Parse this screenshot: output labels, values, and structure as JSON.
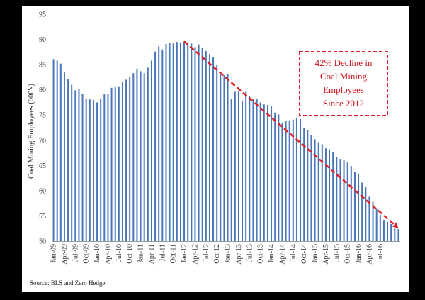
{
  "chart_data": {
    "type": "bar",
    "title": "",
    "xlabel": "",
    "ylabel": "Coal Mining Employees (000's)",
    "ylim": [
      50,
      95
    ],
    "yticks": [
      50,
      55,
      60,
      65,
      70,
      75,
      80,
      85,
      90,
      95
    ],
    "grid": false,
    "tick_labels": [
      "Jan-09",
      "Apr-09",
      "Jul-09",
      "Oct-09",
      "Jan-10",
      "Apr-10",
      "Jul-10",
      "Oct-10",
      "Jan-11",
      "Apr-11",
      "Jul-11",
      "Oct-11",
      "Jan-12",
      "Apr-12",
      "Jul-12",
      "Oct-12",
      "Jan-13",
      "Apr-13",
      "Jul-13",
      "Oct-13",
      "Jan-14",
      "Apr-14",
      "Jul-14",
      "Oct-14",
      "Jan-15",
      "Apr-15",
      "Jul-15",
      "Oct-15",
      "Jan-16",
      "Apr-16",
      "Jul-16"
    ],
    "series": [
      {
        "name": "Coal Mining Employees (000's)",
        "color": "#4a76b8",
        "values": [
          86.1,
          85.8,
          85.2,
          83.6,
          82.2,
          81.0,
          79.9,
          80.2,
          79.2,
          78.2,
          78.1,
          78.0,
          77.5,
          78.3,
          79.1,
          79.2,
          80.4,
          80.5,
          80.7,
          81.5,
          82.0,
          82.6,
          83.3,
          84.2,
          83.7,
          83.3,
          84.4,
          85.8,
          87.6,
          88.6,
          88.0,
          89.1,
          89.3,
          89.2,
          89.5,
          89.4,
          89.6,
          89.4,
          89.2,
          88.5,
          89.0,
          88.4,
          87.7,
          87.1,
          86.5,
          85.0,
          83.0,
          82.9,
          83.2,
          78.2,
          79.6,
          79.8,
          77.7,
          79.6,
          78.7,
          78.2,
          78.2,
          77.5,
          77.1,
          77.0,
          76.7,
          75.5,
          75.1,
          73.5,
          73.8,
          73.9,
          74.1,
          74.4,
          74.2,
          72.4,
          72.0,
          71.0,
          70.2,
          69.6,
          69.2,
          68.4,
          68.2,
          67.7,
          66.7,
          66.3,
          66.1,
          65.7,
          64.9,
          63.7,
          63.4,
          61.6,
          60.8,
          58.8,
          57.8,
          56.5,
          55.2,
          54.2,
          53.8,
          53.4,
          52.5,
          52.4
        ]
      }
    ],
    "annotation": {
      "lines": [
        "42% Decline in",
        "Coal Mining",
        "Employees",
        "Since 2012"
      ],
      "color": "#e01f26",
      "trend_from": {
        "index": 36,
        "value": 89.6
      },
      "trend_to": {
        "index": 95,
        "value": 52.4
      }
    }
  },
  "source_note": "Source:  BLS and Zero Hedge."
}
